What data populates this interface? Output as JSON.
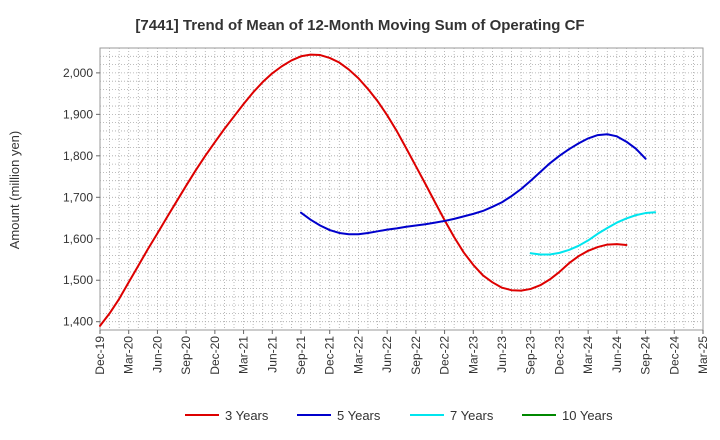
{
  "chart_data": {
    "type": "line",
    "title": "[7441]  Trend of Mean of 12-Month Moving Sum of Operating CF",
    "xlabel": "",
    "ylabel": "Amount (million yen)",
    "ylim": [
      1380,
      2060
    ],
    "yticks": [
      1400,
      1500,
      1600,
      1700,
      1800,
      1900,
      2000
    ],
    "ytick_labels": [
      "1,400",
      "1,500",
      "1,600",
      "1,700",
      "1,800",
      "1,900",
      "2,000"
    ],
    "x_start": "Dec-19",
    "x_end": "Mar-25",
    "x_tick_labels": [
      "Dec-19",
      "Mar-20",
      "Jun-20",
      "Sep-20",
      "Dec-20",
      "Mar-21",
      "Jun-21",
      "Sep-21",
      "Dec-21",
      "Mar-22",
      "Jun-22",
      "Sep-22",
      "Dec-22",
      "Mar-23",
      "Jun-23",
      "Sep-23",
      "Dec-23",
      "Mar-24",
      "Jun-24",
      "Sep-24",
      "Dec-24",
      "Mar-25"
    ],
    "grid": true,
    "legend_position": "bottom",
    "series": [
      {
        "name": "3 Years",
        "color": "#dd0000",
        "start_month_index": 0,
        "values": [
          1390,
          1420,
          1455,
          1495,
          1535,
          1575,
          1613,
          1652,
          1690,
          1728,
          1765,
          1800,
          1833,
          1865,
          1895,
          1925,
          1953,
          1978,
          1999,
          2016,
          2030,
          2040,
          2044,
          2043,
          2036,
          2025,
          2008,
          1987,
          1961,
          1932,
          1898,
          1860,
          1818,
          1775,
          1732,
          1688,
          1645,
          1604,
          1567,
          1537,
          1512,
          1495,
          1482,
          1476,
          1475,
          1479,
          1488,
          1502,
          1520,
          1541,
          1558,
          1571,
          1580,
          1586,
          1587,
          1585
        ]
      },
      {
        "name": "5 Years",
        "color": "#0000cc",
        "start_month_index": 21,
        "values": [
          1663,
          1646,
          1632,
          1621,
          1614,
          1611,
          1611,
          1614,
          1618,
          1622,
          1625,
          1629,
          1632,
          1635,
          1639,
          1643,
          1648,
          1654,
          1660,
          1667,
          1677,
          1688,
          1703,
          1720,
          1740,
          1761,
          1782,
          1800,
          1816,
          1830,
          1842,
          1850,
          1852,
          1847,
          1834,
          1817,
          1793
        ]
      },
      {
        "name": "7 Years",
        "color": "#00e5ee",
        "start_month_index": 45,
        "values": [
          1565,
          1562,
          1562,
          1566,
          1573,
          1583,
          1596,
          1612,
          1626,
          1639,
          1649,
          1657,
          1662,
          1664
        ]
      },
      {
        "name": "10 Years",
        "color": "#008800",
        "start_month_index": 0,
        "values": []
      }
    ]
  }
}
